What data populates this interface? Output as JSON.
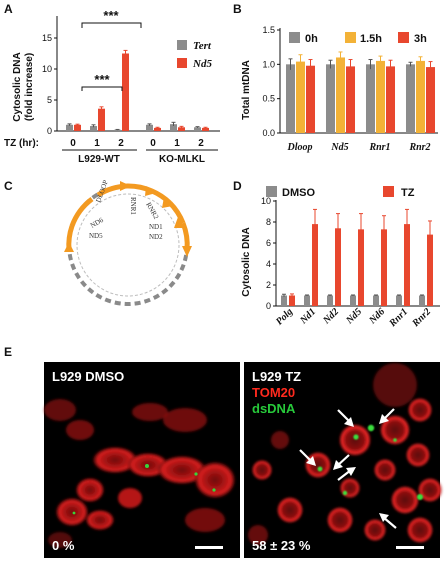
{
  "panels": {
    "A": {
      "letter": "A",
      "ylabel_line1": "Cytosolic DNA",
      "ylabel_line2": "(fold increase)",
      "legend": [
        "Tert",
        "Nd5"
      ],
      "tz_label": "TZ (hr):",
      "group_labels": [
        "L929-WT",
        "KO-MLKL"
      ],
      "sig": [
        "***",
        "***"
      ]
    },
    "B": {
      "letter": "B",
      "ylabel": "Total mtDNA",
      "legend": [
        "0h",
        "1.5h",
        "3h"
      ]
    },
    "C": {
      "letter": "C",
      "genes": [
        "DLOOP",
        "RNR1",
        "RNR2",
        "ND1",
        "ND2",
        "ND5",
        "ND6"
      ]
    },
    "D": {
      "letter": "D",
      "ylabel": "Cytosolic DNA",
      "legend": [
        "DMSO",
        "TZ"
      ]
    },
    "E": {
      "letter": "E",
      "left_title": "L929 DMSO",
      "left_percent": "0 %",
      "right_title": "L929 TZ",
      "right_stain1": "TOM20",
      "right_stain2": "dsDNA",
      "right_percent": "58 ± 23 %"
    }
  },
  "colors": {
    "gray": "#8c8c8c",
    "red": "#e8472e",
    "orange": "#f3b237",
    "arc_orange": "#f39a21",
    "arc_gray": "#8a8a8a"
  },
  "chart_data": [
    {
      "panel": "A",
      "type": "bar",
      "ylabel": "Cytosolic DNA (fold increase)",
      "xlabel": "TZ (hr):",
      "ylim": [
        0,
        15
      ],
      "yticks": [
        0,
        5,
        10,
        15
      ],
      "groups": [
        "L929-WT",
        "KO-MLKL"
      ],
      "categories": [
        "0",
        "1",
        "2",
        "0",
        "1",
        "2"
      ],
      "series": [
        {
          "name": "Tert",
          "color": "#8c8c8c",
          "values": [
            1.0,
            0.8,
            0.2,
            1.0,
            1.1,
            0.6
          ],
          "errors": [
            0.15,
            0.2,
            0.05,
            0.15,
            0.3,
            0.1
          ]
        },
        {
          "name": "Nd5",
          "color": "#e8472e",
          "values": [
            1.0,
            3.6,
            12.5,
            0.5,
            0.6,
            0.5
          ],
          "errors": [
            0.1,
            0.3,
            0.5,
            0.1,
            0.15,
            0.1
          ]
        }
      ]
    },
    {
      "panel": "B",
      "type": "bar",
      "ylabel": "Total mtDNA",
      "ylim": [
        0,
        1.5
      ],
      "yticks": [
        "0.0",
        "0.5",
        "1.0",
        "1.5"
      ],
      "categories": [
        "Dloop",
        "Nd5",
        "Rnr1",
        "Rnr2"
      ],
      "series": [
        {
          "name": "0h",
          "color": "#8c8c8c",
          "values": [
            1.0,
            1.0,
            1.0,
            1.0
          ],
          "errors": [
            0.08,
            0.06,
            0.07,
            0.03
          ]
        },
        {
          "name": "1.5h",
          "color": "#f3b237",
          "values": [
            1.04,
            1.1,
            1.05,
            1.05
          ],
          "errors": [
            0.1,
            0.08,
            0.07,
            0.06
          ]
        },
        {
          "name": "3h",
          "color": "#e8472e",
          "values": [
            0.98,
            0.97,
            0.97,
            0.96
          ],
          "errors": [
            0.09,
            0.1,
            0.09,
            0.08
          ]
        }
      ]
    },
    {
      "panel": "D",
      "type": "bar",
      "ylabel": "Cytosolic DNA",
      "ylim": [
        0,
        10
      ],
      "yticks": [
        0,
        2,
        4,
        6,
        8,
        10
      ],
      "categories": [
        "Polg",
        "Nd1",
        "Nd2",
        "Nd5",
        "Nd6",
        "Rnr1",
        "Rnr2"
      ],
      "series": [
        {
          "name": "DMSO",
          "color": "#8c8c8c",
          "values": [
            1.0,
            1.0,
            1.0,
            1.0,
            1.0,
            1.0,
            1.0
          ],
          "errors": [
            0.12,
            0.05,
            0.05,
            0.05,
            0.05,
            0.05,
            0.05
          ]
        },
        {
          "name": "TZ",
          "color": "#e8472e",
          "values": [
            1.0,
            7.8,
            7.4,
            7.3,
            7.3,
            7.8,
            6.8
          ],
          "errors": [
            0.15,
            1.4,
            1.4,
            1.5,
            1.3,
            1.4,
            1.3
          ]
        }
      ]
    }
  ]
}
